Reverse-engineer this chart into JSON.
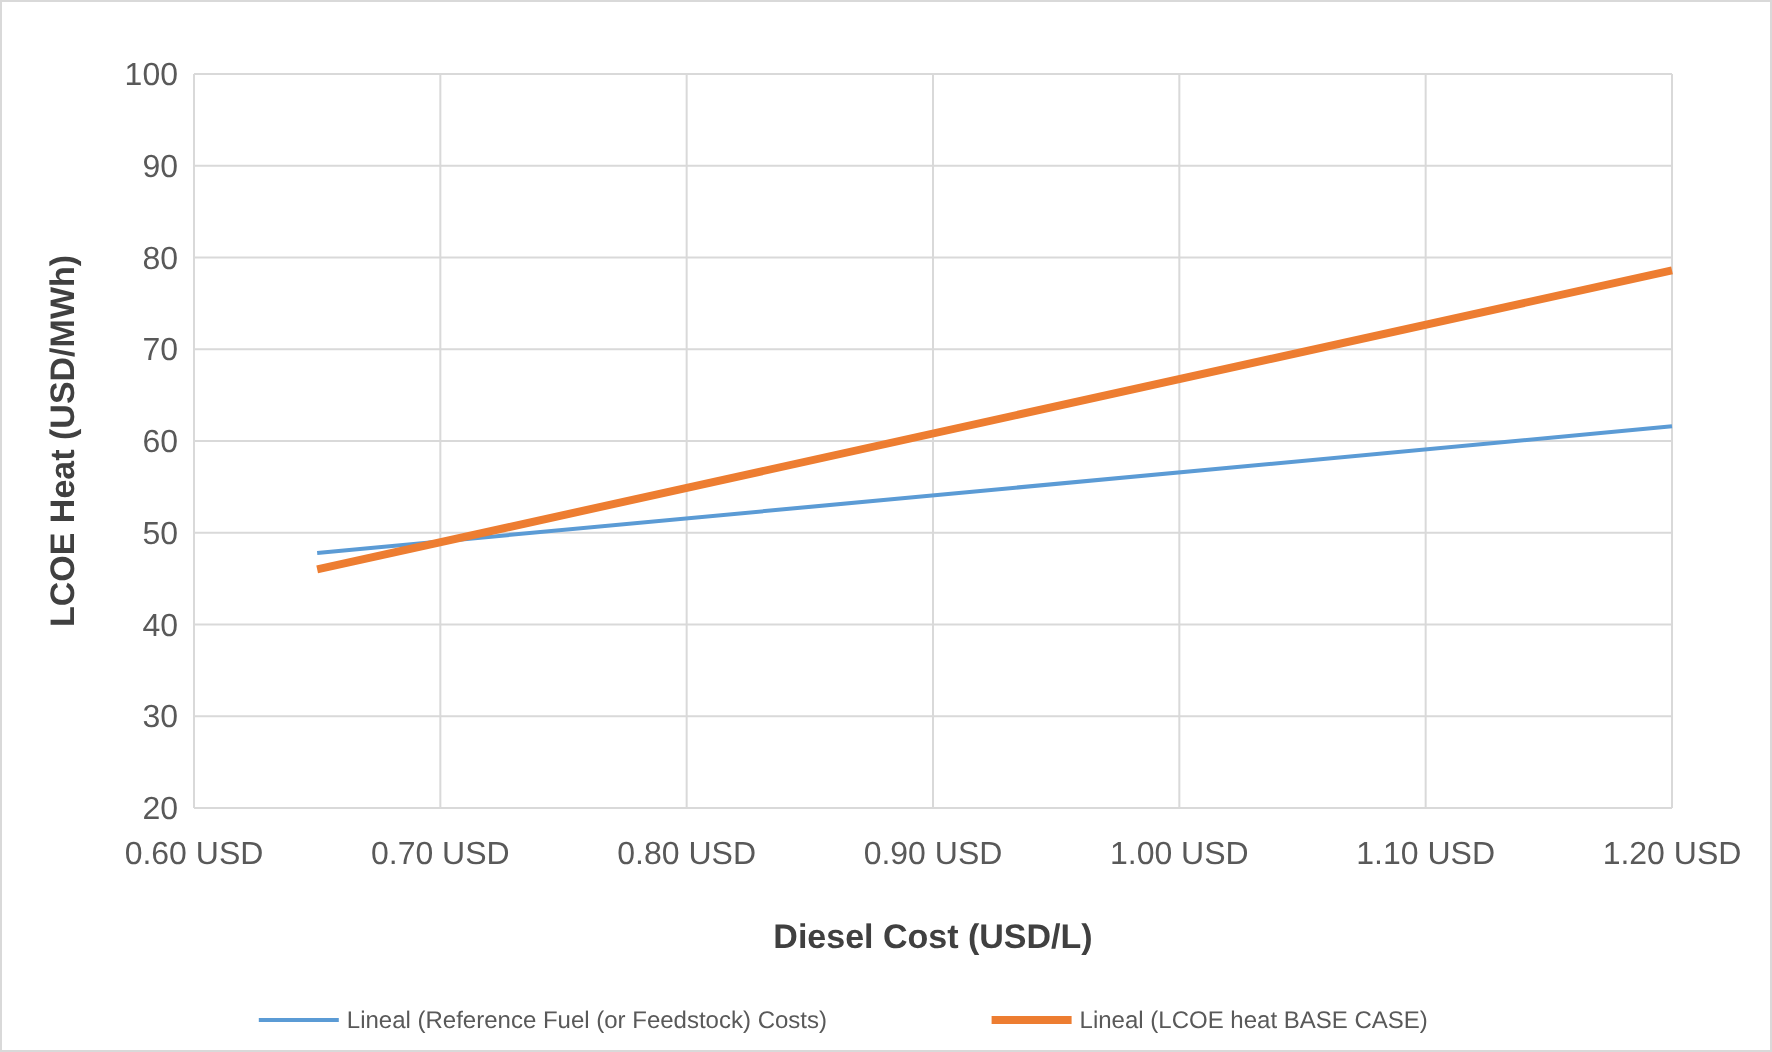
{
  "chart_data": {
    "type": "line",
    "xlabel": "Diesel Cost (USD/L)",
    "ylabel": "LCOE Heat (USD/MWh)",
    "xlim": [
      0.6,
      1.2
    ],
    "xticks": [
      {
        "value": 0.6,
        "label": "0.60 USD"
      },
      {
        "value": 0.7,
        "label": "0.70 USD"
      },
      {
        "value": 0.8,
        "label": "0.80 USD"
      },
      {
        "value": 0.9,
        "label": "0.90 USD"
      },
      {
        "value": 1.0,
        "label": "1.00 USD"
      },
      {
        "value": 1.1,
        "label": "1.10 USD"
      },
      {
        "value": 1.2,
        "label": "1.20 USD"
      }
    ],
    "ylim": [
      20,
      100
    ],
    "yticks": [
      20,
      30,
      40,
      50,
      60,
      70,
      80,
      90,
      100
    ],
    "grid": true,
    "legend": "bottom",
    "marker": "none",
    "line_style": "solid",
    "x": [
      0.65,
      1.2
    ],
    "series": [
      {
        "name": "Lineal (Reference Fuel (or Feedstock) Costs)",
        "color": "#5b9bd5",
        "values": [
          47.8,
          61.6
        ]
      },
      {
        "name": "Lineal (LCOE heat BASE CASE)",
        "color": "#ed7d31",
        "values": [
          46.0,
          78.6
        ]
      }
    ]
  }
}
